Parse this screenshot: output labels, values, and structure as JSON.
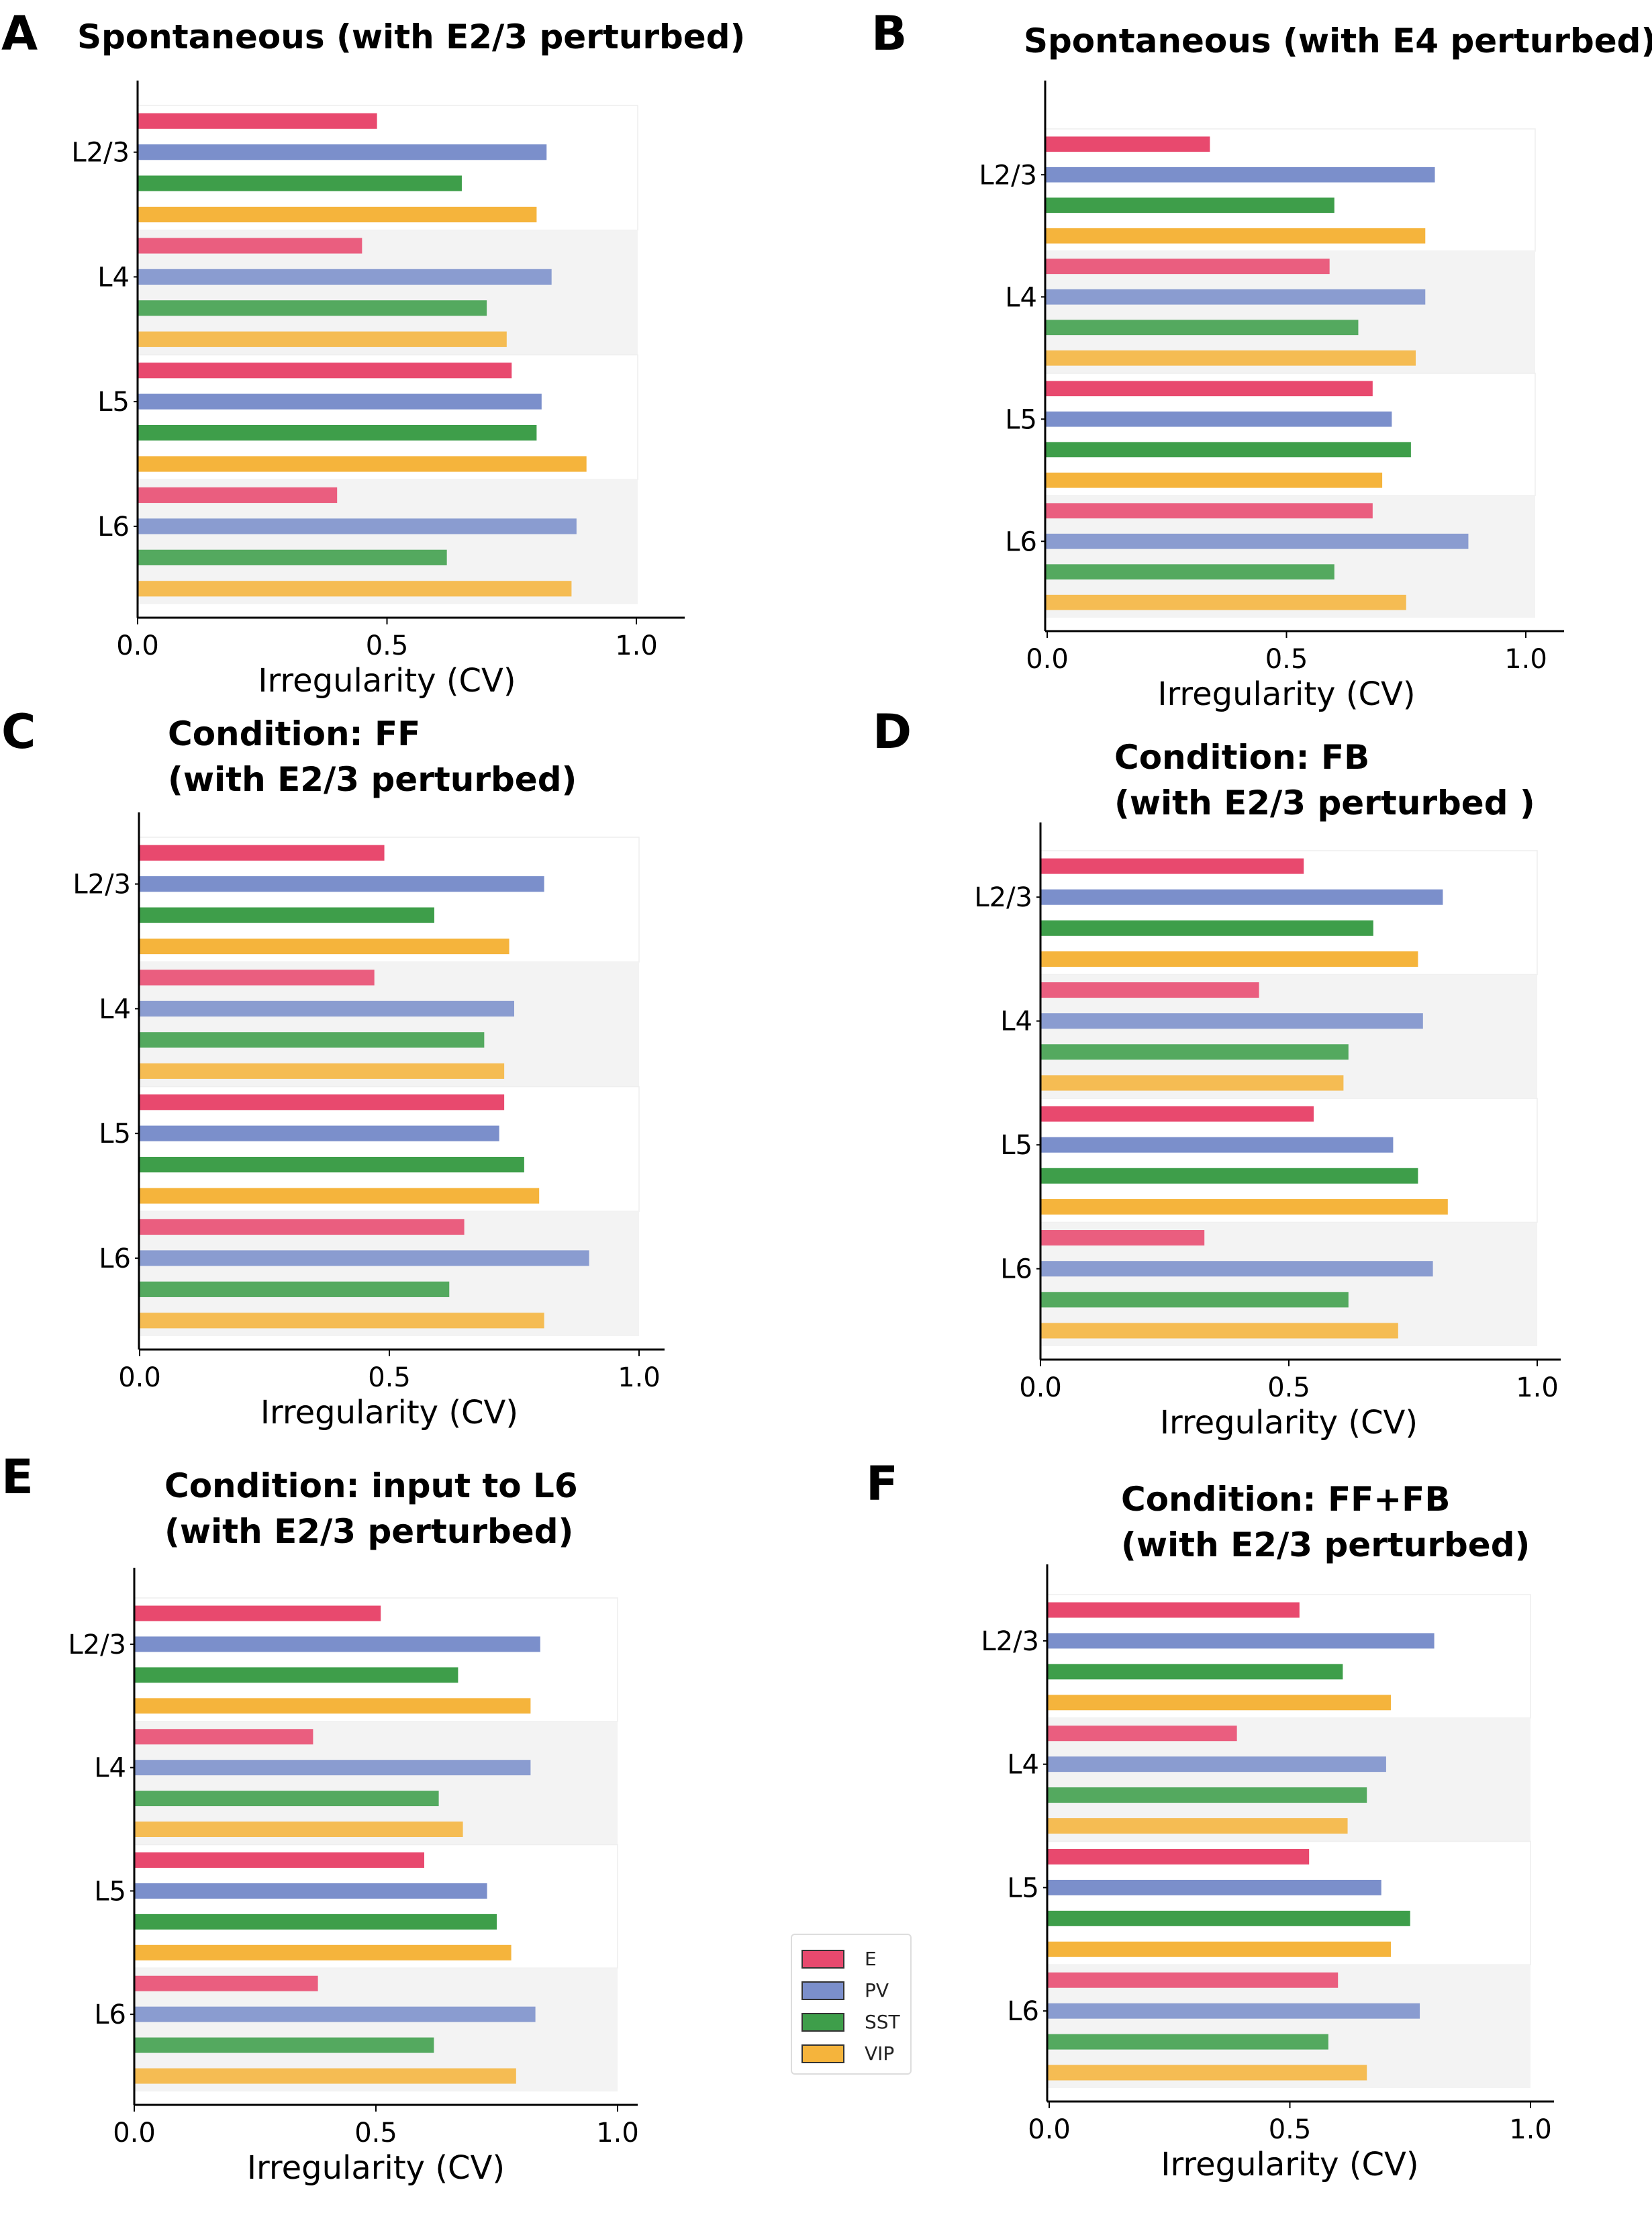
{
  "colors": {
    "E": "#e8496e",
    "PV": "#7b8fcb",
    "SST": "#3e9e4a",
    "VIP": "#f5b43c"
  },
  "legend": [
    {
      "label": "E",
      "color": "#e8496e"
    },
    {
      "label": "PV",
      "color": "#7b8fcb"
    },
    {
      "label": "SST",
      "color": "#3e9e4a"
    },
    {
      "label": "VIP",
      "color": "#f5b43c"
    }
  ],
  "chart_data": [
    {
      "panel": "A",
      "type": "bar",
      "orientation": "horizontal",
      "title": "Spontaneous (with E2/3 perturbed)",
      "xlabel": "Irregularity (CV)",
      "xlim": [
        0,
        1.0
      ],
      "xticks": [
        "0.0",
        "0.5",
        "1.0"
      ],
      "categories": [
        "L2/3",
        "L4",
        "L5",
        "L6"
      ],
      "series": [
        {
          "name": "E",
          "values": [
            0.48,
            0.45,
            0.75,
            0.4
          ]
        },
        {
          "name": "PV",
          "values": [
            0.82,
            0.83,
            0.81,
            0.88
          ]
        },
        {
          "name": "SST",
          "values": [
            0.65,
            0.7,
            0.8,
            0.62
          ]
        },
        {
          "name": "VIP",
          "values": [
            0.8,
            0.74,
            0.9,
            0.87
          ]
        }
      ]
    },
    {
      "panel": "B",
      "type": "bar",
      "orientation": "horizontal",
      "title": "Spontaneous (with E4 perturbed)",
      "xlabel": "Irregularity (CV)",
      "xlim": [
        0,
        1.0
      ],
      "xticks": [
        "0.0",
        "0.5",
        "1.0"
      ],
      "categories": [
        "L2/3",
        "L4",
        "L5",
        "L6"
      ],
      "series": [
        {
          "name": "E",
          "values": [
            0.34,
            0.59,
            0.68,
            0.68
          ]
        },
        {
          "name": "PV",
          "values": [
            0.81,
            0.79,
            0.72,
            0.88
          ]
        },
        {
          "name": "SST",
          "values": [
            0.6,
            0.65,
            0.76,
            0.6
          ]
        },
        {
          "name": "VIP",
          "values": [
            0.79,
            0.77,
            0.7,
            0.75
          ]
        }
      ]
    },
    {
      "panel": "C",
      "type": "bar",
      "orientation": "horizontal",
      "title": "Condition: FF\n(with E2/3 perturbed)",
      "xlabel": "Irregularity (CV)",
      "xlim": [
        0,
        1.0
      ],
      "xticks": [
        "0.0",
        "0.5",
        "1.0"
      ],
      "categories": [
        "L2/3",
        "L4",
        "L5",
        "L6"
      ],
      "series": [
        {
          "name": "E",
          "values": [
            0.49,
            0.47,
            0.73,
            0.65
          ]
        },
        {
          "name": "PV",
          "values": [
            0.81,
            0.75,
            0.72,
            0.9
          ]
        },
        {
          "name": "SST",
          "values": [
            0.59,
            0.69,
            0.77,
            0.62
          ]
        },
        {
          "name": "VIP",
          "values": [
            0.74,
            0.73,
            0.8,
            0.81
          ]
        }
      ]
    },
    {
      "panel": "D",
      "type": "bar",
      "orientation": "horizontal",
      "title": "Condition: FB\n(with E2/3 perturbed )",
      "xlabel": "Irregularity (CV)",
      "xlim": [
        0,
        1.0
      ],
      "xticks": [
        "0.0",
        "0.5",
        "1.0"
      ],
      "categories": [
        "L2/3",
        "L4",
        "L5",
        "L6"
      ],
      "series": [
        {
          "name": "E",
          "values": [
            0.53,
            0.44,
            0.55,
            0.33
          ]
        },
        {
          "name": "PV",
          "values": [
            0.81,
            0.77,
            0.71,
            0.79
          ]
        },
        {
          "name": "SST",
          "values": [
            0.67,
            0.62,
            0.76,
            0.62
          ]
        },
        {
          "name": "VIP",
          "values": [
            0.76,
            0.61,
            0.82,
            0.72
          ]
        }
      ]
    },
    {
      "panel": "E",
      "type": "bar",
      "orientation": "horizontal",
      "title": "Condition: input to L6\n(with E2/3 perturbed)",
      "xlabel": "Irregularity (CV)",
      "xlim": [
        0,
        1.0
      ],
      "xticks": [
        "0.0",
        "0.5",
        "1.0"
      ],
      "categories": [
        "L2/3",
        "L4",
        "L5",
        "L6"
      ],
      "series": [
        {
          "name": "E",
          "values": [
            0.51,
            0.37,
            0.6,
            0.38
          ]
        },
        {
          "name": "PV",
          "values": [
            0.84,
            0.82,
            0.73,
            0.83
          ]
        },
        {
          "name": "SST",
          "values": [
            0.67,
            0.63,
            0.75,
            0.62
          ]
        },
        {
          "name": "VIP",
          "values": [
            0.82,
            0.68,
            0.78,
            0.79
          ]
        }
      ]
    },
    {
      "panel": "F",
      "type": "bar",
      "orientation": "horizontal",
      "title": "Condition: FF+FB\n(with E2/3 perturbed)",
      "xlabel": "Irregularity (CV)",
      "xlim": [
        0,
        1.0
      ],
      "xticks": [
        "0.0",
        "0.5",
        "1.0"
      ],
      "categories": [
        "L2/3",
        "L4",
        "L5",
        "L6"
      ],
      "series": [
        {
          "name": "E",
          "values": [
            0.52,
            0.39,
            0.54,
            0.6
          ]
        },
        {
          "name": "PV",
          "values": [
            0.8,
            0.7,
            0.69,
            0.77
          ]
        },
        {
          "name": "SST",
          "values": [
            0.61,
            0.66,
            0.75,
            0.58
          ]
        },
        {
          "name": "VIP",
          "values": [
            0.71,
            0.62,
            0.71,
            0.66
          ]
        }
      ]
    }
  ]
}
